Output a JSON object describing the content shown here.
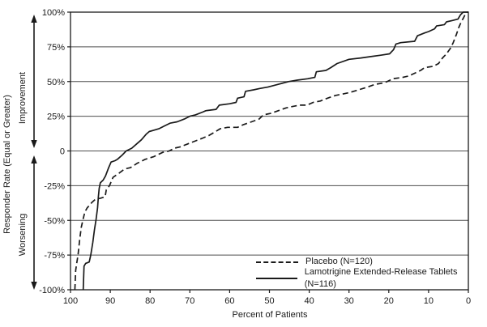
{
  "chart_data": {
    "type": "line",
    "title": "",
    "xlabel": "Percent of Patients",
    "ylabel": "Responder Rate (Equal or Greater)",
    "y_region_labels": {
      "top": "Improvement",
      "bottom": "Worsening"
    },
    "x_axis": {
      "min": 0,
      "max": 100,
      "reversed": true,
      "ticks": [
        100,
        90,
        80,
        70,
        60,
        50,
        40,
        30,
        20,
        10,
        0
      ]
    },
    "y_axis": {
      "min": -100,
      "max": 100,
      "tick_values": [
        100,
        75,
        50,
        25,
        0,
        -25,
        -50,
        -75,
        -100
      ],
      "tick_labels": [
        "100%",
        "75%",
        "50%",
        "25%",
        "0",
        "-25%",
        "-50%",
        "-75%",
        "-100%"
      ]
    },
    "grid": true,
    "legend_position": "inside-bottom-right",
    "colors": {
      "line": "#1a1a1a",
      "grid": "#4d4d4d",
      "text": "#1a1a1a",
      "background": "#ffffff"
    },
    "series": [
      {
        "name": "Placebo (N=120)",
        "line_style": "dashed",
        "points": [
          [
            98.9,
            -100
          ],
          [
            98.7,
            -86
          ],
          [
            98.4,
            -80
          ],
          [
            98.1,
            -75
          ],
          [
            97.7,
            -64
          ],
          [
            97.3,
            -55
          ],
          [
            96.9,
            -50
          ],
          [
            96.4,
            -44
          ],
          [
            95.8,
            -41
          ],
          [
            95.2,
            -39
          ],
          [
            94.6,
            -37
          ],
          [
            93.8,
            -35
          ],
          [
            92.4,
            -34
          ],
          [
            91.3,
            -33
          ],
          [
            91.0,
            -28
          ],
          [
            90.2,
            -25
          ],
          [
            89.3,
            -19
          ],
          [
            87.8,
            -16
          ],
          [
            86.4,
            -13
          ],
          [
            84.9,
            -12
          ],
          [
            83.3,
            -9
          ],
          [
            81.2,
            -6
          ],
          [
            79.0,
            -4
          ],
          [
            76.8,
            -1
          ],
          [
            75.2,
            0
          ],
          [
            73.9,
            2
          ],
          [
            72.4,
            3
          ],
          [
            70.6,
            5
          ],
          [
            68.8,
            7
          ],
          [
            67.0,
            9
          ],
          [
            65.3,
            11
          ],
          [
            63.5,
            14
          ],
          [
            62.4,
            16
          ],
          [
            60.5,
            17
          ],
          [
            58.0,
            17
          ],
          [
            56.5,
            19
          ],
          [
            54.5,
            21
          ],
          [
            52.6,
            23
          ],
          [
            51.5,
            26
          ],
          [
            49.8,
            27
          ],
          [
            47.8,
            29
          ],
          [
            45.8,
            31
          ],
          [
            44.2,
            32
          ],
          [
            42.4,
            33
          ],
          [
            40.6,
            33
          ],
          [
            39.0,
            35
          ],
          [
            37.2,
            36
          ],
          [
            35.4,
            38
          ],
          [
            33.4,
            40
          ],
          [
            31.6,
            41
          ],
          [
            30.0,
            42
          ],
          [
            27.6,
            44
          ],
          [
            25.4,
            46
          ],
          [
            23.4,
            48
          ],
          [
            21.4,
            49
          ],
          [
            20.4,
            50
          ],
          [
            19.0,
            52
          ],
          [
            16.5,
            53
          ],
          [
            15.0,
            54
          ],
          [
            13.5,
            56
          ],
          [
            12.0,
            58
          ],
          [
            11.0,
            60
          ],
          [
            8.8,
            61
          ],
          [
            7.5,
            63
          ],
          [
            6.5,
            67
          ],
          [
            5.5,
            70
          ],
          [
            4.5,
            74
          ],
          [
            3.8,
            78
          ],
          [
            3.0,
            84
          ],
          [
            2.4,
            89
          ],
          [
            1.8,
            93
          ],
          [
            1.2,
            96
          ],
          [
            0.7,
            99
          ],
          [
            0.3,
            100
          ],
          [
            0,
            100
          ]
        ]
      },
      {
        "name": "Lamotrigine Extended-Release Tablets (N=116)",
        "line_style": "solid",
        "points": [
          [
            96.8,
            -100
          ],
          [
            96.6,
            -83
          ],
          [
            96.2,
            -81
          ],
          [
            95.3,
            -80
          ],
          [
            94.9,
            -75
          ],
          [
            94.4,
            -66
          ],
          [
            94.0,
            -57
          ],
          [
            93.6,
            -50
          ],
          [
            93.2,
            -41
          ],
          [
            93.0,
            -33
          ],
          [
            92.8,
            -27
          ],
          [
            92.5,
            -23
          ],
          [
            91.8,
            -21
          ],
          [
            91.2,
            -18
          ],
          [
            90.4,
            -12
          ],
          [
            89.8,
            -8
          ],
          [
            88.8,
            -7
          ],
          [
            88.2,
            -6
          ],
          [
            87.0,
            -3
          ],
          [
            86.0,
            0
          ],
          [
            84.6,
            2
          ],
          [
            83.0,
            6
          ],
          [
            82.2,
            8
          ],
          [
            81.0,
            12
          ],
          [
            80.2,
            14
          ],
          [
            79.0,
            15
          ],
          [
            77.8,
            16
          ],
          [
            76.4,
            18
          ],
          [
            75.0,
            20
          ],
          [
            73.2,
            21
          ],
          [
            71.4,
            23
          ],
          [
            70.0,
            25
          ],
          [
            68.6,
            26
          ],
          [
            66.8,
            28
          ],
          [
            66.0,
            29
          ],
          [
            63.4,
            30
          ],
          [
            62.6,
            33
          ],
          [
            60.0,
            34
          ],
          [
            58.4,
            35
          ],
          [
            58.0,
            38
          ],
          [
            56.4,
            39
          ],
          [
            56.0,
            43
          ],
          [
            54.0,
            44
          ],
          [
            52.4,
            45
          ],
          [
            50.4,
            46
          ],
          [
            47.8,
            48
          ],
          [
            45.2,
            50
          ],
          [
            43.0,
            51
          ],
          [
            40.4,
            52
          ],
          [
            38.6,
            53
          ],
          [
            38.2,
            57
          ],
          [
            35.8,
            58
          ],
          [
            34.6,
            60
          ],
          [
            33.0,
            63
          ],
          [
            30.0,
            66
          ],
          [
            27.0,
            67
          ],
          [
            24.5,
            68
          ],
          [
            22.0,
            69
          ],
          [
            19.8,
            70
          ],
          [
            18.8,
            73
          ],
          [
            18.2,
            77
          ],
          [
            17.0,
            78
          ],
          [
            13.5,
            79
          ],
          [
            12.8,
            83
          ],
          [
            11.0,
            85
          ],
          [
            10.0,
            86
          ],
          [
            8.5,
            88
          ],
          [
            8.0,
            90
          ],
          [
            6.0,
            91
          ],
          [
            5.5,
            93
          ],
          [
            4.0,
            94
          ],
          [
            2.6,
            95
          ],
          [
            2.0,
            98
          ],
          [
            1.3,
            100
          ],
          [
            0,
            100
          ]
        ]
      }
    ]
  }
}
